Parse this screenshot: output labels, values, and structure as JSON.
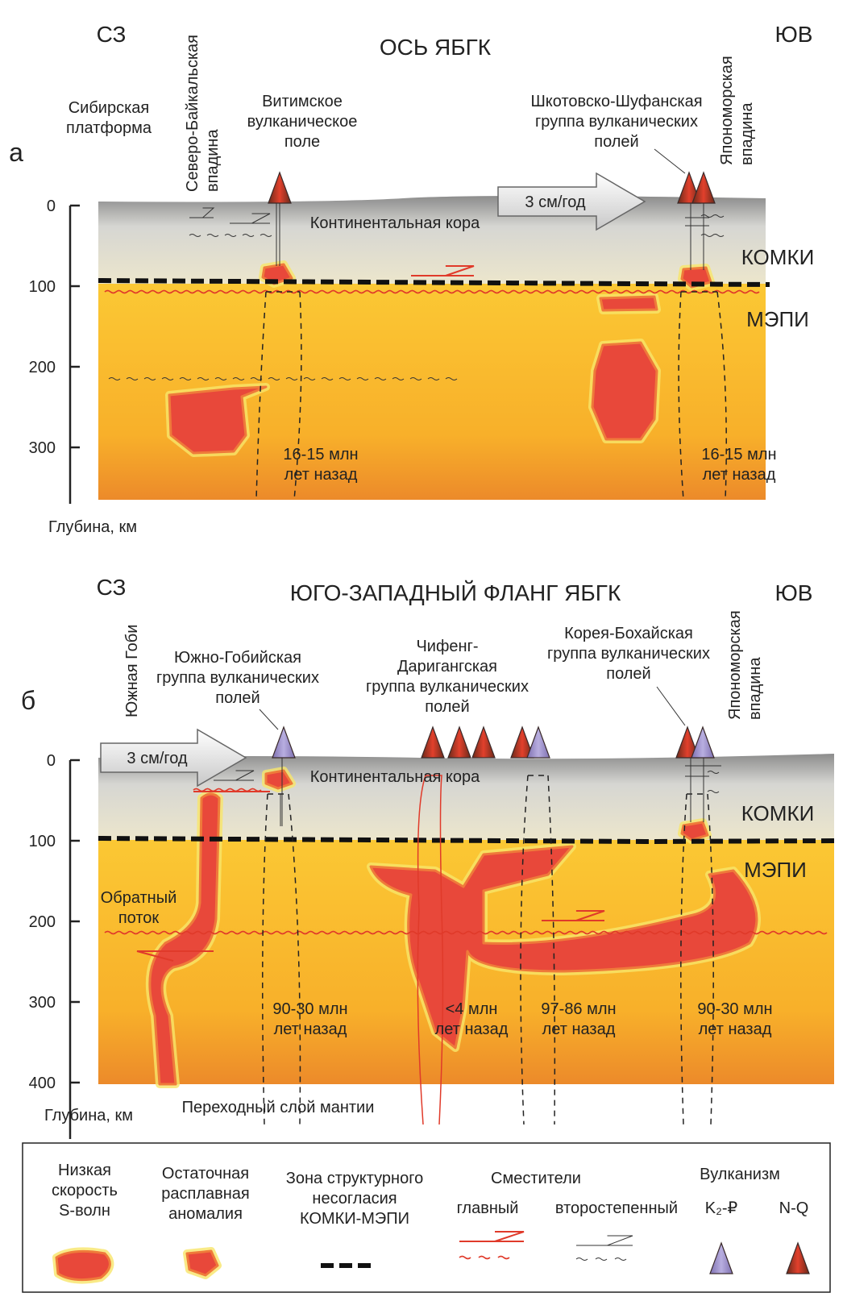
{
  "panel_a": {
    "letter": "а",
    "nw": "СЗ",
    "se": "ЮВ",
    "title": "ОСЬ ЯБГК",
    "siberian": [
      "Сибирская",
      "платформа"
    ],
    "north_baikal": [
      "Северо-Байкальская",
      "впадина"
    ],
    "vitim": [
      "Витимское",
      "вулканическое",
      "поле"
    ],
    "shkotovo": [
      "Шкотовско-Шуфанская",
      "группа вулканических",
      "полей"
    ],
    "japan_sea": [
      "Япономорская",
      "впадина"
    ],
    "plate_speed": "3 см/год",
    "crust": "Континентальная кора",
    "komki": "КОМКИ",
    "mepi": "МЭПИ",
    "ages": [
      [
        "16-15 млн",
        "лет назад"
      ],
      [
        "16-15 млн",
        "лет назад"
      ]
    ],
    "depth_ticks": [
      0,
      100,
      200,
      300
    ],
    "depth_axis_label": "Глубина, км"
  },
  "panel_b": {
    "letter": "б",
    "nw": "СЗ",
    "se": "ЮВ",
    "title": "ЮГО-ЗАПАДНЫЙ ФЛАНГ ЯБГК",
    "south_gobi": [
      "Южная Гоби"
    ],
    "south_gobi_group": [
      "Южно-Гобийская",
      "группа вулканических",
      "полей"
    ],
    "chifeng": [
      "Чифенг-",
      "Даригангская",
      "группа вулканических",
      "полей"
    ],
    "korea": [
      "Корея-Бохайская",
      "группа вулканических",
      "полей"
    ],
    "japan_sea": [
      "Япономорская",
      "впадина"
    ],
    "plate_speed": "3 см/год",
    "crust": "Континентальная кора",
    "komki": "КОМКИ",
    "mepi": "МЭПИ",
    "backflow": [
      "Обратный",
      "поток"
    ],
    "ages": [
      [
        "90-30 млн",
        "лет назад"
      ],
      [
        "<4 млн",
        "лет назад"
      ],
      [
        "97-86 млн",
        "лет назад"
      ],
      [
        "90-30 млн",
        "лет назад"
      ]
    ],
    "transition_zone": "Переходный слой мантии",
    "depth_ticks": [
      0,
      100,
      200,
      300,
      400
    ],
    "depth_axis_label": "Глубина, км"
  },
  "legend": {
    "low_velocity": [
      "Низкая",
      "скорость",
      "S-волн"
    ],
    "residual_melt": [
      "Остаточная",
      "расплавная",
      "аномалия"
    ],
    "unconformity": [
      "Зона структурного",
      "несогласия",
      "КОМКИ-МЭПИ"
    ],
    "faults": "Сместители",
    "fault_main": "главный",
    "fault_secondary": "второстепенный",
    "volcanism": "Вулканизм",
    "volc_k2p": "K₂-₽",
    "volc_nq": "N-Q"
  }
}
